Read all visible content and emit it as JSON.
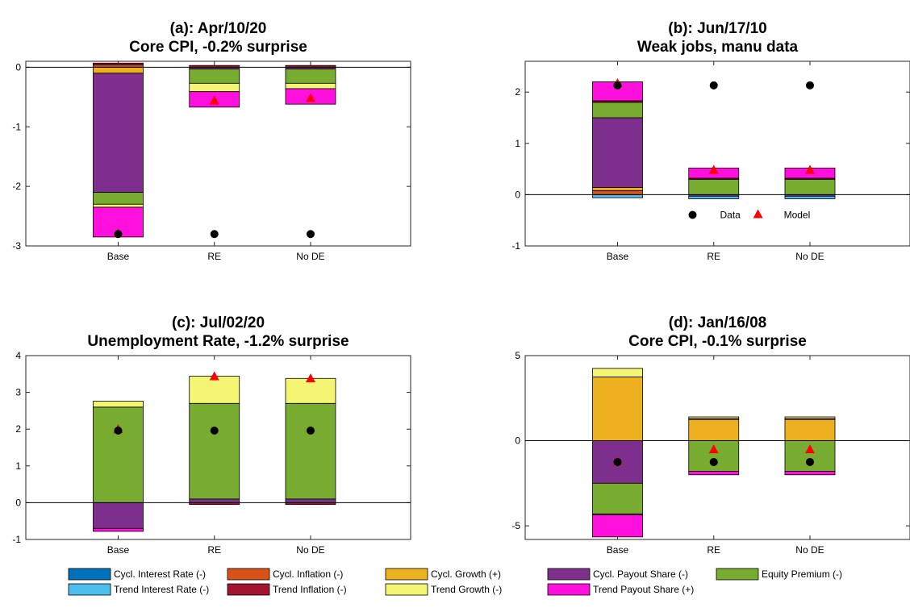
{
  "chart_data": [
    {
      "type": "bar",
      "stacked": true,
      "title": "(a): Apr/10/20",
      "subtitle": "Core CPI, -0.2% surprise",
      "categories": [
        "Base",
        "RE",
        "No DE"
      ],
      "ylim": [
        -3,
        0.1
      ],
      "yticks": [
        -3,
        -2,
        -1,
        0
      ],
      "ytick_labels": [
        "-3",
        "-2",
        "-1",
        "0"
      ],
      "grid": false,
      "show_marker_legend": false,
      "series": [
        {
          "key": "cycl_interest",
          "values": [
            0.0,
            0.0,
            0.0
          ]
        },
        {
          "key": "cycl_inflation",
          "values": [
            0.04,
            0.0,
            0.0
          ]
        },
        {
          "key": "cycl_growth",
          "values": [
            -0.1,
            0.0,
            0.0
          ]
        },
        {
          "key": "cycl_payout",
          "values": [
            -2.0,
            -0.03,
            -0.03
          ]
        },
        {
          "key": "equity_premium",
          "values": [
            -0.2,
            -0.24,
            -0.24
          ]
        },
        {
          "key": "trend_interest",
          "values": [
            0.0,
            0.0,
            0.0
          ]
        },
        {
          "key": "trend_inflation",
          "values": [
            0.03,
            0.03,
            0.03
          ]
        },
        {
          "key": "trend_growth",
          "values": [
            -0.05,
            -0.14,
            -0.09
          ]
        },
        {
          "key": "trend_payout",
          "values": [
            -0.5,
            -0.26,
            -0.26
          ]
        }
      ],
      "data_points": [
        -2.8,
        -2.8,
        -2.8
      ],
      "model_points": [
        -2.8,
        -0.57,
        -0.53
      ]
    },
    {
      "type": "bar",
      "stacked": true,
      "title": "(b): Jun/17/10",
      "subtitle": "Weak jobs, manu data",
      "categories": [
        "Base",
        "RE",
        "No DE"
      ],
      "ylim": [
        -1,
        2.6
      ],
      "yticks": [
        -1,
        0,
        1,
        2
      ],
      "ytick_labels": [
        "-1",
        "0",
        "1",
        "2"
      ],
      "grid": false,
      "show_marker_legend": true,
      "series": [
        {
          "key": "cycl_interest",
          "values": [
            0.0,
            0.0,
            0.0
          ]
        },
        {
          "key": "cycl_inflation",
          "values": [
            0.08,
            0.0,
            0.0
          ]
        },
        {
          "key": "cycl_growth",
          "values": [
            0.06,
            0.0,
            0.0
          ]
        },
        {
          "key": "cycl_payout",
          "values": [
            1.36,
            -0.03,
            -0.03
          ]
        },
        {
          "key": "equity_premium",
          "values": [
            0.3,
            0.3,
            0.3
          ]
        },
        {
          "key": "trend_interest",
          "values": [
            -0.06,
            -0.05,
            -0.05
          ]
        },
        {
          "key": "trend_inflation",
          "values": [
            0.03,
            0.02,
            0.02
          ]
        },
        {
          "key": "trend_growth",
          "values": [
            0.0,
            0.0,
            0.0
          ]
        },
        {
          "key": "trend_payout",
          "values": [
            0.37,
            0.2,
            0.2
          ]
        }
      ],
      "data_points": [
        2.13,
        2.13,
        2.13
      ],
      "model_points": [
        2.16,
        0.47,
        0.47
      ]
    },
    {
      "type": "bar",
      "stacked": true,
      "title": "(c): Jul/02/20",
      "subtitle": "Unemployment Rate, -1.2% surprise",
      "categories": [
        "Base",
        "RE",
        "No DE"
      ],
      "ylim": [
        -1,
        4
      ],
      "yticks": [
        -1,
        0,
        1,
        2,
        3,
        4
      ],
      "ytick_labels": [
        "-1",
        "0",
        "1",
        "2",
        "3",
        "4"
      ],
      "grid": false,
      "show_marker_legend": false,
      "series": [
        {
          "key": "cycl_interest",
          "values": [
            0.0,
            0.0,
            0.0
          ]
        },
        {
          "key": "cycl_inflation",
          "values": [
            0.0,
            0.0,
            0.0
          ]
        },
        {
          "key": "cycl_growth",
          "values": [
            0.0,
            0.0,
            0.0
          ]
        },
        {
          "key": "cycl_payout",
          "values": [
            -0.7,
            0.1,
            0.1
          ]
        },
        {
          "key": "equity_premium",
          "values": [
            2.6,
            2.6,
            2.6
          ]
        },
        {
          "key": "trend_interest",
          "values": [
            0.0,
            0.0,
            0.0
          ]
        },
        {
          "key": "trend_inflation",
          "values": [
            0.0,
            -0.05,
            -0.05
          ]
        },
        {
          "key": "trend_growth",
          "values": [
            0.16,
            0.74,
            0.68
          ]
        },
        {
          "key": "trend_payout",
          "values": [
            -0.08,
            0.0,
            0.0
          ]
        }
      ],
      "data_points": [
        1.96,
        1.96,
        1.96
      ],
      "model_points": [
        1.98,
        3.42,
        3.36
      ]
    },
    {
      "type": "bar",
      "stacked": true,
      "title": "(d): Jan/16/08",
      "subtitle": "Core CPI, -0.1% surprise",
      "categories": [
        "Base",
        "RE",
        "No DE"
      ],
      "ylim": [
        -5.8,
        5
      ],
      "yticks": [
        -5,
        0,
        5
      ],
      "ytick_labels": [
        "-5",
        "0",
        "5"
      ],
      "grid": false,
      "show_marker_legend": false,
      "series": [
        {
          "key": "cycl_interest",
          "values": [
            0.0,
            0.0,
            0.0
          ]
        },
        {
          "key": "cycl_inflation",
          "values": [
            0.0,
            0.0,
            0.0
          ]
        },
        {
          "key": "cycl_growth",
          "values": [
            3.75,
            1.25,
            1.25
          ]
        },
        {
          "key": "cycl_payout",
          "values": [
            -2.5,
            0.0,
            0.0
          ]
        },
        {
          "key": "equity_premium",
          "values": [
            -1.8,
            -1.8,
            -1.8
          ]
        },
        {
          "key": "trend_interest",
          "values": [
            0.0,
            0.0,
            0.0
          ]
        },
        {
          "key": "trend_inflation",
          "values": [
            -0.05,
            0.05,
            0.05
          ]
        },
        {
          "key": "trend_growth",
          "values": [
            0.5,
            0.1,
            0.1
          ]
        },
        {
          "key": "trend_payout",
          "values": [
            -1.3,
            -0.2,
            -0.2
          ]
        }
      ],
      "data_points": [
        -1.25,
        -1.25,
        -1.25
      ],
      "model_points": [
        -1.25,
        -0.55,
        -0.55
      ]
    }
  ],
  "legend": {
    "items": [
      {
        "key": "cycl_interest",
        "label": "Cycl. Interest Rate (-)",
        "color": "#0072BD"
      },
      {
        "key": "cycl_inflation",
        "label": "Cycl. Inflation (-)",
        "color": "#D95319"
      },
      {
        "key": "cycl_growth",
        "label": "Cycl. Growth (+)",
        "color": "#EDB120"
      },
      {
        "key": "cycl_payout",
        "label": "Cycl. Payout Share (-)",
        "color": "#7E2F8E"
      },
      {
        "key": "equity_premium",
        "label": "Equity Premium (-)",
        "color": "#77AC30"
      },
      {
        "key": "trend_interest",
        "label": "Trend Interest Rate (-)",
        "color": "#4DBEEE"
      },
      {
        "key": "trend_inflation",
        "label": "Trend Inflation (-)",
        "color": "#A2142F"
      },
      {
        "key": "trend_growth",
        "label": "Trend Growth (-)",
        "color": "#F3F573"
      },
      {
        "key": "trend_payout",
        "label": "Trend Payout Share (+)",
        "color": "#FF10DC"
      }
    ],
    "marker_legend": {
      "data_label": "Data",
      "model_label": "Model",
      "data_color": "#000000",
      "model_color": "#FF0000"
    }
  }
}
